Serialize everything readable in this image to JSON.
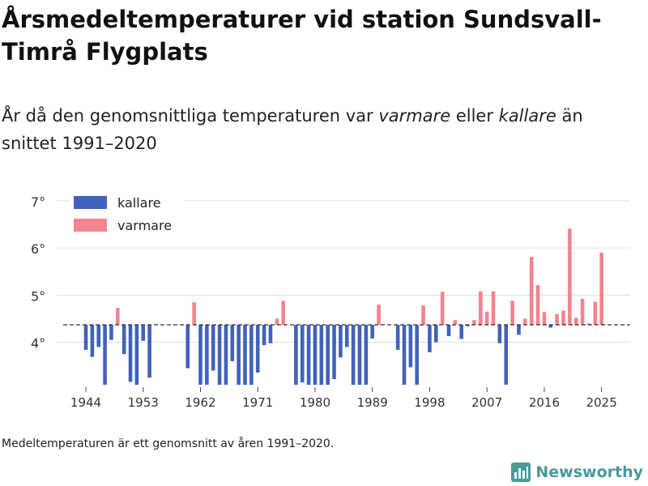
{
  "title": "Årsmedeltemperaturer vid station Sundsvall-Timrå Flygplats",
  "subtitle": {
    "part1": "År då den genomsnittliga temperaturen var ",
    "warm_word": "varmare",
    "part2": " eller ",
    "cold_word": "kallare",
    "part3": " än snittet 1991–2020"
  },
  "footnote": "Medeltemperaturen är ett genomsnitt av åren 1991–2020.",
  "brand": {
    "name": "Newsworthy",
    "icon": "bar-chart-logo-icon",
    "color": "#4a9a9a"
  },
  "colors": {
    "colder": "#4062bb",
    "warmer": "#f4838f",
    "grid": "#dddddd",
    "reference": "#333333"
  },
  "chart_data": {
    "type": "bar",
    "title": "Årsmedeltemperaturer vid station Sundsvall-Timrå Flygplats",
    "xlabel": "",
    "ylabel": "",
    "reference_line": 4.37,
    "ylim": [
      3.1,
      7.1
    ],
    "yticks": [
      4,
      5,
      6,
      7
    ],
    "ytick_labels": [
      "4°",
      "5°",
      "6°",
      "7°"
    ],
    "xticks": [
      1944,
      1953,
      1962,
      1971,
      1980,
      1989,
      1998,
      2007,
      2016,
      2025
    ],
    "xtick_labels": [
      "1944",
      "1953",
      "1962",
      "1971",
      "1980",
      "1989",
      "1998",
      "2007",
      "2016",
      "2025"
    ],
    "legend": {
      "position": "top-left",
      "entries": [
        {
          "label": "kallare",
          "key": "colder"
        },
        {
          "label": "varmare",
          "key": "warmer"
        }
      ]
    },
    "years": [
      1944,
      1945,
      1946,
      1947,
      1948,
      1949,
      1950,
      1951,
      1952,
      1953,
      1954,
      1960,
      1961,
      1962,
      1963,
      1964,
      1965,
      1966,
      1967,
      1968,
      1969,
      1970,
      1971,
      1972,
      1973,
      1974,
      1975,
      1977,
      1978,
      1979,
      1980,
      1981,
      1982,
      1983,
      1984,
      1985,
      1986,
      1987,
      1988,
      1989,
      1990,
      1993,
      1994,
      1995,
      1996,
      1997,
      1998,
      1999,
      2000,
      2001,
      2002,
      2003,
      2004,
      2005,
      2006,
      2007,
      2008,
      2009,
      2010,
      2011,
      2012,
      2013,
      2014,
      2015,
      2016,
      2017,
      2018,
      2019,
      2020,
      2021,
      2022,
      2023,
      2024,
      2025
    ],
    "values": [
      3.84,
      3.69,
      3.9,
      3.1,
      4.05,
      4.73,
      3.75,
      3.16,
      3.1,
      4.03,
      3.25,
      3.45,
      4.85,
      3.1,
      3.1,
      3.4,
      3.1,
      3.1,
      3.6,
      3.1,
      3.1,
      3.1,
      3.36,
      3.94,
      3.98,
      4.5,
      4.88,
      3.1,
      3.15,
      3.1,
      3.1,
      3.1,
      3.1,
      3.22,
      3.68,
      3.9,
      3.1,
      3.1,
      3.1,
      4.08,
      4.8,
      3.84,
      3.1,
      3.47,
      3.1,
      4.78,
      3.79,
      4.0,
      5.07,
      4.13,
      4.47,
      4.07,
      4.34,
      4.47,
      5.08,
      4.65,
      5.08,
      3.98,
      3.1,
      4.88,
      4.16,
      4.5,
      5.81,
      5.21,
      4.64,
      4.31,
      4.6,
      4.67,
      6.41,
      4.52,
      4.92,
      4.4,
      4.86,
      5.9
    ]
  }
}
